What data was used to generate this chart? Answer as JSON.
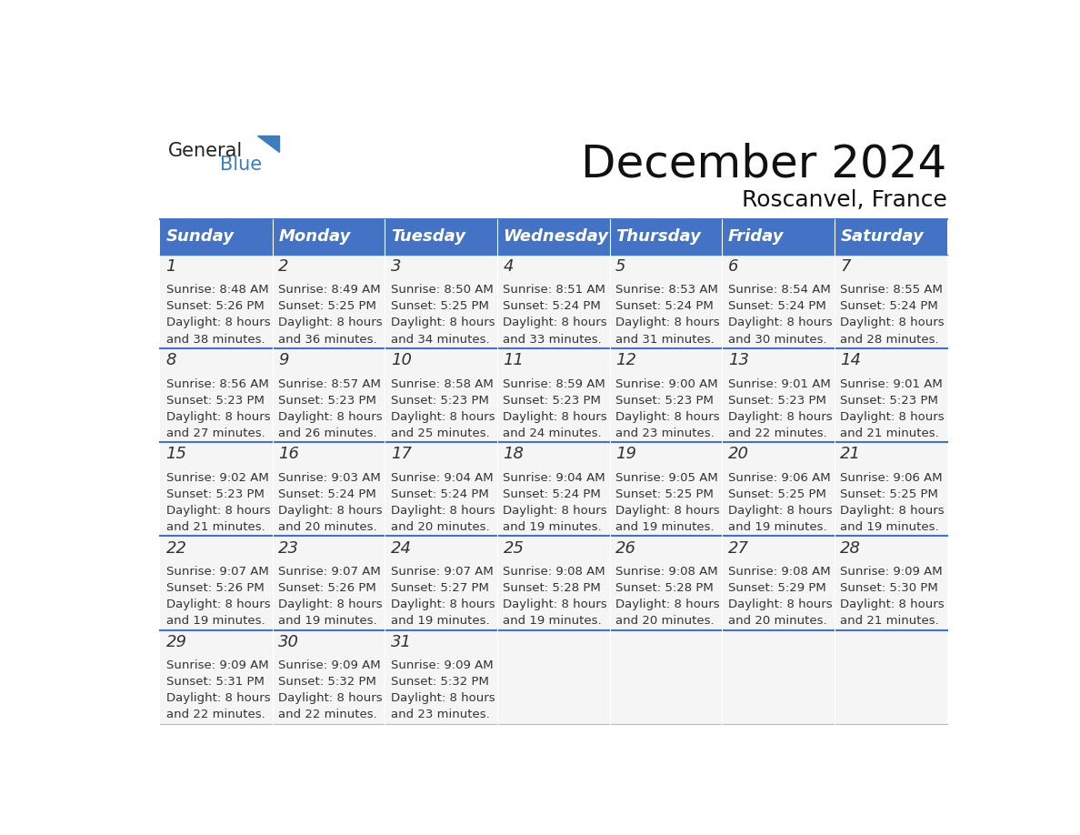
{
  "title": "December 2024",
  "subtitle": "Roscanvel, France",
  "days_of_week": [
    "Sunday",
    "Monday",
    "Tuesday",
    "Wednesday",
    "Thursday",
    "Friday",
    "Saturday"
  ],
  "header_bg": "#4472C4",
  "header_text_color": "#FFFFFF",
  "bg_color": "#F5F5F5",
  "day_number_color": "#333333",
  "cell_text_color": "#333333",
  "divider_color": "#4472C4",
  "calendar_data": [
    [
      {
        "day": 1,
        "sunrise": "8:48 AM",
        "sunset": "5:26 PM",
        "daylight_hours": 8,
        "daylight_minutes": 38
      },
      {
        "day": 2,
        "sunrise": "8:49 AM",
        "sunset": "5:25 PM",
        "daylight_hours": 8,
        "daylight_minutes": 36
      },
      {
        "day": 3,
        "sunrise": "8:50 AM",
        "sunset": "5:25 PM",
        "daylight_hours": 8,
        "daylight_minutes": 34
      },
      {
        "day": 4,
        "sunrise": "8:51 AM",
        "sunset": "5:24 PM",
        "daylight_hours": 8,
        "daylight_minutes": 33
      },
      {
        "day": 5,
        "sunrise": "8:53 AM",
        "sunset": "5:24 PM",
        "daylight_hours": 8,
        "daylight_minutes": 31
      },
      {
        "day": 6,
        "sunrise": "8:54 AM",
        "sunset": "5:24 PM",
        "daylight_hours": 8,
        "daylight_minutes": 30
      },
      {
        "day": 7,
        "sunrise": "8:55 AM",
        "sunset": "5:24 PM",
        "daylight_hours": 8,
        "daylight_minutes": 28
      }
    ],
    [
      {
        "day": 8,
        "sunrise": "8:56 AM",
        "sunset": "5:23 PM",
        "daylight_hours": 8,
        "daylight_minutes": 27
      },
      {
        "day": 9,
        "sunrise": "8:57 AM",
        "sunset": "5:23 PM",
        "daylight_hours": 8,
        "daylight_minutes": 26
      },
      {
        "day": 10,
        "sunrise": "8:58 AM",
        "sunset": "5:23 PM",
        "daylight_hours": 8,
        "daylight_minutes": 25
      },
      {
        "day": 11,
        "sunrise": "8:59 AM",
        "sunset": "5:23 PM",
        "daylight_hours": 8,
        "daylight_minutes": 24
      },
      {
        "day": 12,
        "sunrise": "9:00 AM",
        "sunset": "5:23 PM",
        "daylight_hours": 8,
        "daylight_minutes": 23
      },
      {
        "day": 13,
        "sunrise": "9:01 AM",
        "sunset": "5:23 PM",
        "daylight_hours": 8,
        "daylight_minutes": 22
      },
      {
        "day": 14,
        "sunrise": "9:01 AM",
        "sunset": "5:23 PM",
        "daylight_hours": 8,
        "daylight_minutes": 21
      }
    ],
    [
      {
        "day": 15,
        "sunrise": "9:02 AM",
        "sunset": "5:23 PM",
        "daylight_hours": 8,
        "daylight_minutes": 21
      },
      {
        "day": 16,
        "sunrise": "9:03 AM",
        "sunset": "5:24 PM",
        "daylight_hours": 8,
        "daylight_minutes": 20
      },
      {
        "day": 17,
        "sunrise": "9:04 AM",
        "sunset": "5:24 PM",
        "daylight_hours": 8,
        "daylight_minutes": 20
      },
      {
        "day": 18,
        "sunrise": "9:04 AM",
        "sunset": "5:24 PM",
        "daylight_hours": 8,
        "daylight_minutes": 19
      },
      {
        "day": 19,
        "sunrise": "9:05 AM",
        "sunset": "5:25 PM",
        "daylight_hours": 8,
        "daylight_minutes": 19
      },
      {
        "day": 20,
        "sunrise": "9:06 AM",
        "sunset": "5:25 PM",
        "daylight_hours": 8,
        "daylight_minutes": 19
      },
      {
        "day": 21,
        "sunrise": "9:06 AM",
        "sunset": "5:25 PM",
        "daylight_hours": 8,
        "daylight_minutes": 19
      }
    ],
    [
      {
        "day": 22,
        "sunrise": "9:07 AM",
        "sunset": "5:26 PM",
        "daylight_hours": 8,
        "daylight_minutes": 19
      },
      {
        "day": 23,
        "sunrise": "9:07 AM",
        "sunset": "5:26 PM",
        "daylight_hours": 8,
        "daylight_minutes": 19
      },
      {
        "day": 24,
        "sunrise": "9:07 AM",
        "sunset": "5:27 PM",
        "daylight_hours": 8,
        "daylight_minutes": 19
      },
      {
        "day": 25,
        "sunrise": "9:08 AM",
        "sunset": "5:28 PM",
        "daylight_hours": 8,
        "daylight_minutes": 19
      },
      {
        "day": 26,
        "sunrise": "9:08 AM",
        "sunset": "5:28 PM",
        "daylight_hours": 8,
        "daylight_minutes": 20
      },
      {
        "day": 27,
        "sunrise": "9:08 AM",
        "sunset": "5:29 PM",
        "daylight_hours": 8,
        "daylight_minutes": 20
      },
      {
        "day": 28,
        "sunrise": "9:09 AM",
        "sunset": "5:30 PM",
        "daylight_hours": 8,
        "daylight_minutes": 21
      }
    ],
    [
      {
        "day": 29,
        "sunrise": "9:09 AM",
        "sunset": "5:31 PM",
        "daylight_hours": 8,
        "daylight_minutes": 22
      },
      {
        "day": 30,
        "sunrise": "9:09 AM",
        "sunset": "5:32 PM",
        "daylight_hours": 8,
        "daylight_minutes": 22
      },
      {
        "day": 31,
        "sunrise": "9:09 AM",
        "sunset": "5:32 PM",
        "daylight_hours": 8,
        "daylight_minutes": 23
      },
      null,
      null,
      null,
      null
    ]
  ],
  "logo_general_color": "#222222",
  "logo_blue_color": "#3d7ebf",
  "title_fontsize": 36,
  "subtitle_fontsize": 18,
  "header_fontsize": 13,
  "day_number_fontsize": 13,
  "cell_text_fontsize": 9.5
}
